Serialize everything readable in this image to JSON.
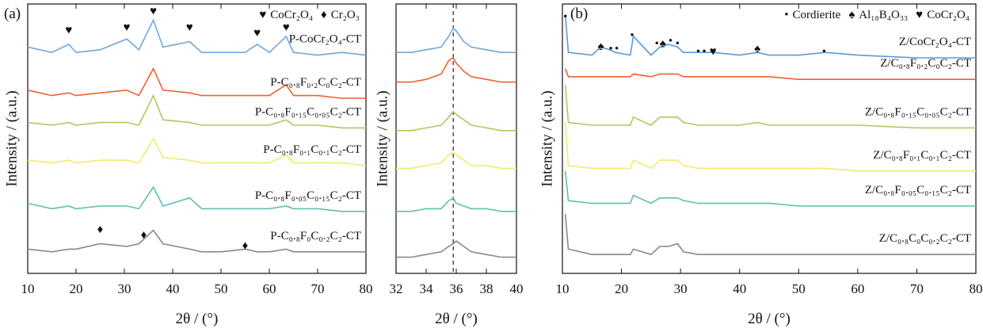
{
  "chart_data": [
    {
      "type": "line",
      "panel_label": "(a)",
      "xlabel": "2θ / (°)",
      "ylabel": "Intensity / (a.u.)",
      "xlim": [
        10,
        80
      ],
      "xticks": [
        10,
        20,
        30,
        40,
        50,
        60,
        70,
        80
      ],
      "ylim": [
        0,
        100
      ],
      "legend": [
        {
          "symbol": "♥",
          "label": "CoCr₂O₄"
        },
        {
          "symbol": "♦",
          "label": "Cr₂O₃"
        }
      ],
      "x": [
        10,
        15,
        18.5,
        20,
        25,
        30.5,
        33,
        36,
        38,
        43.5,
        46,
        50,
        55,
        57.5,
        60,
        63.5,
        65,
        70,
        75,
        80
      ],
      "series": [
        {
          "name": "P-CoCr₂O₄-CT",
          "color": "#6fa8dc",
          "values": [
            84,
            82,
            85,
            82,
            83,
            87,
            83,
            94,
            84,
            86,
            82,
            82,
            82,
            85,
            82,
            88,
            82,
            81,
            82,
            81
          ]
        },
        {
          "name": "P-C₀.₈F₀.₂C₀C₂-CT",
          "color": "#f06030",
          "values": [
            68,
            66,
            67,
            66,
            67,
            68,
            66,
            76,
            68,
            67,
            66,
            66,
            66,
            66,
            66,
            70,
            66,
            66,
            65,
            65
          ]
        },
        {
          "name": "P-C₀.₈F₀.₁₅C₀.₀₅C₂-CT",
          "color": "#a8cc60",
          "values": [
            56,
            55,
            56,
            55,
            56,
            56,
            55,
            66,
            57,
            56,
            55,
            55,
            55,
            55,
            55,
            57,
            55,
            55,
            54,
            54
          ]
        },
        {
          "name": "P-C₀.₈F₀.₁C₀.₁C₂-CT",
          "color": "#f0ea70",
          "values": [
            42,
            41,
            42,
            41,
            42,
            42,
            41,
            50,
            43,
            42,
            41,
            41,
            41,
            41,
            41,
            44,
            41,
            41,
            41,
            40
          ]
        },
        {
          "name": "P-C₀.₈F₀.₀₅C₀.₁₅C₂-CT",
          "color": "#5ec0b0",
          "values": [
            26,
            24,
            25,
            24,
            25,
            25,
            24,
            32,
            25,
            28,
            24,
            24,
            24,
            24,
            24,
            25,
            24,
            24,
            23,
            23
          ]
        },
        {
          "name": "P-C₀.₈F₀C₀.₂C₂-CT",
          "color": "#8f8686",
          "values": [
            9,
            8,
            9,
            9,
            11,
            10,
            11,
            16,
            11,
            9,
            8,
            8,
            9,
            8,
            8,
            9,
            8,
            8,
            8,
            8
          ]
        }
      ],
      "annotations": [
        {
          "symbol": "♥",
          "x": 18.5,
          "y": 90
        },
        {
          "symbol": "♥",
          "x": 30.5,
          "y": 91
        },
        {
          "symbol": "♥",
          "x": 36,
          "y": 97
        },
        {
          "symbol": "♥",
          "x": 43.5,
          "y": 91
        },
        {
          "symbol": "♥",
          "x": 57.5,
          "y": 89
        },
        {
          "symbol": "♥",
          "x": 63.5,
          "y": 91
        },
        {
          "symbol": "♦",
          "x": 25,
          "y": 16
        },
        {
          "symbol": "♦",
          "x": 34,
          "y": 14
        },
        {
          "symbol": "♦",
          "x": 55,
          "y": 10
        }
      ]
    },
    {
      "type": "line",
      "xlabel": "2θ / (°)",
      "ylabel": "Intensity / (a.u.)",
      "xlim": [
        32,
        40
      ],
      "xticks": [
        32,
        34,
        36,
        38,
        40
      ],
      "ylim": [
        0,
        100
      ],
      "reference_line": 35.8,
      "x": [
        32,
        33,
        34,
        35,
        35.5,
        35.8,
        36,
        36.5,
        37,
        38,
        39,
        40
      ],
      "series": [
        {
          "color": "#6fa8dc",
          "values": [
            82,
            82,
            83,
            84,
            88,
            91,
            90,
            86,
            84,
            83,
            82,
            82
          ]
        },
        {
          "color": "#f06030",
          "values": [
            71,
            71,
            72,
            74,
            79,
            80,
            78,
            75,
            73,
            72,
            71,
            71
          ]
        },
        {
          "color": "#a8cc60",
          "values": [
            53,
            53,
            54,
            55,
            58,
            60,
            59,
            57,
            55,
            54,
            53,
            53
          ]
        },
        {
          "color": "#f0ea70",
          "values": [
            39,
            39,
            40,
            41,
            44,
            45,
            44,
            42,
            40,
            40,
            39,
            39
          ]
        },
        {
          "color": "#5ec0b0",
          "values": [
            23,
            23,
            24,
            24,
            27,
            28,
            26,
            25,
            24,
            24,
            23,
            23
          ]
        },
        {
          "color": "#8f8686",
          "values": [
            6,
            6,
            7,
            8,
            10,
            11,
            12,
            10,
            8,
            7,
            6,
            6
          ]
        }
      ]
    },
    {
      "type": "line",
      "panel_label": "(b)",
      "xlabel": "2θ / (°)",
      "ylabel": "Intensity / (a.u.)",
      "xlim": [
        10,
        80
      ],
      "xticks": [
        10,
        20,
        30,
        40,
        50,
        60,
        70,
        80
      ],
      "ylim": [
        0,
        100
      ],
      "legend": [
        {
          "symbol": "•",
          "label": "Cordierite"
        },
        {
          "symbol": "♠",
          "label": "Al₁₈B₄O₃₃"
        },
        {
          "symbol": "♥",
          "label": "CoCr₂O₄"
        }
      ],
      "x": [
        10.5,
        11,
        15,
        16.5,
        18,
        19,
        21.5,
        22,
        25,
        26.5,
        28,
        29.5,
        30.5,
        33,
        34,
        35.5,
        40,
        43,
        45,
        50,
        54.5,
        60,
        70,
        80
      ],
      "series": [
        {
          "name": "Z/CoCr₂O₄-CT",
          "color": "#5b9bd5",
          "values": [
            96,
            82,
            81,
            84,
            83,
            82,
            81,
            88,
            81,
            84,
            85,
            84,
            82,
            82,
            82,
            82,
            81,
            82,
            81,
            81,
            82,
            81,
            80,
            80
          ]
        },
        {
          "name": "Z/C₀.₈F₀.₂C₀C₂-CT",
          "color": "#f06030",
          "values": [
            76,
            73,
            73,
            73,
            73,
            73,
            73,
            74,
            73,
            74,
            74,
            74,
            73,
            73,
            73,
            73,
            73,
            73,
            73,
            72,
            72,
            72,
            72,
            72
          ]
        },
        {
          "name": "Z/C₀.₈F₀.₁₅C₀.₀₅C₂-CT",
          "color": "#a8cc60",
          "values": [
            70,
            56,
            55,
            55,
            55,
            55,
            55,
            58,
            55,
            58,
            58,
            58,
            56,
            55,
            55,
            55,
            55,
            56,
            55,
            55,
            55,
            55,
            54,
            54
          ]
        },
        {
          "name": "Z/C₀.₈F₀.₁C₀.₁C₂-CT",
          "color": "#f0ea70",
          "values": [
            56,
            40,
            39,
            39,
            39,
            39,
            39,
            42,
            39,
            42,
            42,
            42,
            40,
            39,
            39,
            39,
            39,
            39,
            39,
            39,
            39,
            38,
            38,
            38
          ]
        },
        {
          "name": "Z/C₀.₈F₀.₀₅C₀.₁₅C₂-CT",
          "color": "#5ec0b0",
          "values": [
            38,
            27,
            26,
            26,
            26,
            26,
            26,
            29,
            26,
            28,
            28,
            28,
            27,
            26,
            26,
            26,
            26,
            26,
            26,
            25,
            25,
            25,
            25,
            25
          ]
        },
        {
          "name": "Z/C₀.₈C₀C₀.₂C₂-CT",
          "color": "#8f8686",
          "values": [
            22,
            9,
            7,
            7,
            7,
            7,
            7,
            9,
            7,
            10,
            10,
            11,
            8,
            7,
            7,
            7,
            7,
            7,
            7,
            7,
            7,
            7,
            7,
            7
          ]
        }
      ],
      "annotations": [
        {
          "symbol": "•",
          "x": 10.5,
          "y": 95
        },
        {
          "symbol": "♠",
          "x": 16.5,
          "y": 84
        },
        {
          "symbol": "•",
          "x": 18.2,
          "y": 83
        },
        {
          "symbol": "•",
          "x": 19.2,
          "y": 83
        },
        {
          "symbol": "•",
          "x": 21.8,
          "y": 88
        },
        {
          "symbol": "•",
          "x": 26,
          "y": 85
        },
        {
          "symbol": "♠",
          "x": 27,
          "y": 85
        },
        {
          "symbol": "•",
          "x": 28.3,
          "y": 86
        },
        {
          "symbol": "•",
          "x": 29.5,
          "y": 85
        },
        {
          "symbol": "•",
          "x": 33,
          "y": 82
        },
        {
          "symbol": "•",
          "x": 34,
          "y": 82
        },
        {
          "symbol": "♥",
          "x": 35.5,
          "y": 82
        },
        {
          "symbol": "♠",
          "x": 43,
          "y": 83
        },
        {
          "symbol": "•",
          "x": 54.3,
          "y": 82
        }
      ]
    }
  ]
}
